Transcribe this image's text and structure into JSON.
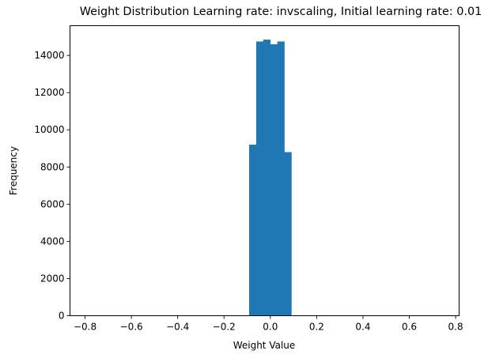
{
  "chart_data": {
    "type": "bar",
    "title": "Weight Distribution Learning rate: invscaling, Initial learning rate: 0.01",
    "xlabel": "Weight Value",
    "ylabel": "Frequency",
    "xlim": [
      -0.865,
      0.815
    ],
    "ylim": [
      0,
      15600
    ],
    "xticks": [
      -0.8,
      -0.6,
      -0.4,
      -0.2,
      0.0,
      0.2,
      0.4,
      0.6,
      0.8
    ],
    "xtick_labels": [
      "−0.8",
      "−0.6",
      "−0.4",
      "−0.2",
      "0.0",
      "0.2",
      "0.4",
      "0.6",
      "0.8"
    ],
    "yticks": [
      0,
      2000,
      4000,
      6000,
      8000,
      10000,
      12000,
      14000
    ],
    "ytick_labels": [
      "0",
      "2000",
      "4000",
      "6000",
      "8000",
      "10000",
      "12000",
      "14000"
    ],
    "bin_edges": [
      -0.0915,
      -0.0611,
      -0.0307,
      -0.0003,
      0.0301,
      0.0605,
      0.0909
    ],
    "counts": [
      9200,
      14750,
      14850,
      14600,
      14750,
      8800
    ],
    "grid": false,
    "bar_color": "#1f77b4"
  }
}
